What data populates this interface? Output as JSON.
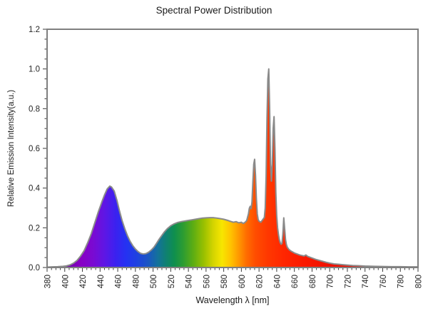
{
  "title": "Spectral Power Distribution",
  "colors": {
    "background": "#ffffff",
    "axis_box": "#7f7f7f",
    "tick": "#3a3a3a",
    "text": "#262626",
    "curve_line": "#8a8a8a"
  },
  "chart_data": {
    "type": "area",
    "title": "Spectral Power Distribution",
    "xlabel": "Wavelength λ [nm]",
    "ylabel": "Relative Emission Intensity(a.u.)",
    "xlim": [
      380,
      800
    ],
    "ylim": [
      0.0,
      1.2
    ],
    "x_major_step": 20,
    "x_minor_step": 5,
    "y_major_step": 0.2,
    "y_minor_step": 0.05,
    "grid": false,
    "legend_position": "none",
    "x_tick_labels": [
      "380",
      "400",
      "420",
      "440",
      "460",
      "480",
      "500",
      "520",
      "540",
      "560",
      "580",
      "600",
      "620",
      "640",
      "660",
      "680",
      "700",
      "720",
      "740",
      "760",
      "780",
      "800"
    ],
    "y_tick_labels": [
      "0.0",
      "0.2",
      "0.4",
      "0.6",
      "0.8",
      "1.0",
      "1.2"
    ],
    "fill_style": "visible-spectrum-gradient",
    "spectrum_stops": [
      [
        400,
        "#6a00a8"
      ],
      [
        418,
        "#8800c4"
      ],
      [
        432,
        "#7a0ad2"
      ],
      [
        446,
        "#5c17e6"
      ],
      [
        458,
        "#3a22f0"
      ],
      [
        470,
        "#2433f2"
      ],
      [
        482,
        "#1e42e0"
      ],
      [
        494,
        "#1b55c4"
      ],
      [
        505,
        "#14719c"
      ],
      [
        515,
        "#0f8170"
      ],
      [
        524,
        "#0f8f4e"
      ],
      [
        534,
        "#2c9c32"
      ],
      [
        546,
        "#5fae12"
      ],
      [
        558,
        "#9cc100"
      ],
      [
        568,
        "#d3d400"
      ],
      [
        578,
        "#f7e600"
      ],
      [
        588,
        "#ffc300"
      ],
      [
        597,
        "#ff9800"
      ],
      [
        606,
        "#ff6c00"
      ],
      [
        616,
        "#ff4d00"
      ],
      [
        630,
        "#ff3800"
      ],
      [
        648,
        "#ff2600"
      ],
      [
        672,
        "#fa1900"
      ],
      [
        700,
        "#f01000"
      ],
      [
        760,
        "#e60b00"
      ],
      [
        800,
        "#e40a00"
      ]
    ],
    "series": [
      {
        "name": "Spectral Power Distribution",
        "points": [
          [
            380,
            0.002
          ],
          [
            386,
            0.003
          ],
          [
            392,
            0.004
          ],
          [
            398,
            0.006
          ],
          [
            402,
            0.008
          ],
          [
            406,
            0.013
          ],
          [
            410,
            0.022
          ],
          [
            414,
            0.036
          ],
          [
            418,
            0.058
          ],
          [
            422,
            0.085
          ],
          [
            426,
            0.125
          ],
          [
            430,
            0.17
          ],
          [
            434,
            0.225
          ],
          [
            438,
            0.28
          ],
          [
            442,
            0.33
          ],
          [
            445,
            0.365
          ],
          [
            448,
            0.395
          ],
          [
            451,
            0.41
          ],
          [
            453,
            0.405
          ],
          [
            456,
            0.385
          ],
          [
            459,
            0.34
          ],
          [
            462,
            0.285
          ],
          [
            465,
            0.235
          ],
          [
            468,
            0.195
          ],
          [
            471,
            0.16
          ],
          [
            474,
            0.132
          ],
          [
            477,
            0.11
          ],
          [
            480,
            0.093
          ],
          [
            483,
            0.08
          ],
          [
            486,
            0.071
          ],
          [
            489,
            0.068
          ],
          [
            492,
            0.07
          ],
          [
            495,
            0.077
          ],
          [
            498,
            0.088
          ],
          [
            501,
            0.102
          ],
          [
            504,
            0.122
          ],
          [
            507,
            0.143
          ],
          [
            510,
            0.162
          ],
          [
            513,
            0.18
          ],
          [
            516,
            0.195
          ],
          [
            520,
            0.21
          ],
          [
            524,
            0.22
          ],
          [
            528,
            0.227
          ],
          [
            532,
            0.231
          ],
          [
            536,
            0.234
          ],
          [
            540,
            0.237
          ],
          [
            544,
            0.24
          ],
          [
            548,
            0.243
          ],
          [
            552,
            0.246
          ],
          [
            556,
            0.249
          ],
          [
            560,
            0.25
          ],
          [
            564,
            0.251
          ],
          [
            568,
            0.251
          ],
          [
            572,
            0.249
          ],
          [
            576,
            0.246
          ],
          [
            580,
            0.243
          ],
          [
            584,
            0.238
          ],
          [
            588,
            0.232
          ],
          [
            591,
            0.228
          ],
          [
            594,
            0.231
          ],
          [
            597,
            0.225
          ],
          [
            600,
            0.228
          ],
          [
            602,
            0.222
          ],
          [
            604,
            0.227
          ],
          [
            606,
            0.236
          ],
          [
            608,
            0.27
          ],
          [
            609,
            0.298
          ],
          [
            610,
            0.308
          ],
          [
            611,
            0.296
          ],
          [
            612,
            0.33
          ],
          [
            613,
            0.43
          ],
          [
            614,
            0.52
          ],
          [
            615,
            0.545
          ],
          [
            616,
            0.465
          ],
          [
            617,
            0.345
          ],
          [
            618,
            0.27
          ],
          [
            619,
            0.242
          ],
          [
            620,
            0.233
          ],
          [
            622,
            0.228
          ],
          [
            624,
            0.24
          ],
          [
            626,
            0.252
          ],
          [
            627,
            0.3
          ],
          [
            628,
            0.46
          ],
          [
            629,
            0.75
          ],
          [
            630,
            0.95
          ],
          [
            631,
            1.0
          ],
          [
            632,
            0.8
          ],
          [
            633,
            0.52
          ],
          [
            634,
            0.435
          ],
          [
            635,
            0.52
          ],
          [
            636,
            0.7
          ],
          [
            637,
            0.76
          ],
          [
            638,
            0.6
          ],
          [
            639,
            0.38
          ],
          [
            640,
            0.26
          ],
          [
            641,
            0.2
          ],
          [
            642,
            0.165
          ],
          [
            643,
            0.14
          ],
          [
            644,
            0.125
          ],
          [
            645,
            0.117
          ],
          [
            646,
            0.122
          ],
          [
            647,
            0.17
          ],
          [
            648,
            0.25
          ],
          [
            649,
            0.195
          ],
          [
            650,
            0.14
          ],
          [
            651,
            0.115
          ],
          [
            652,
            0.102
          ],
          [
            654,
            0.09
          ],
          [
            656,
            0.083
          ],
          [
            658,
            0.078
          ],
          [
            660,
            0.073
          ],
          [
            663,
            0.068
          ],
          [
            666,
            0.063
          ],
          [
            669,
            0.06
          ],
          [
            671,
            0.058
          ],
          [
            673,
            0.063
          ],
          [
            675,
            0.056
          ],
          [
            678,
            0.051
          ],
          [
            681,
            0.046
          ],
          [
            684,
            0.041
          ],
          [
            688,
            0.036
          ],
          [
            692,
            0.031
          ],
          [
            696,
            0.026
          ],
          [
            700,
            0.022
          ],
          [
            705,
            0.018
          ],
          [
            710,
            0.016
          ],
          [
            715,
            0.014
          ],
          [
            720,
            0.012
          ],
          [
            726,
            0.01
          ],
          [
            732,
            0.009
          ],
          [
            740,
            0.007
          ],
          [
            750,
            0.006
          ],
          [
            760,
            0.005
          ],
          [
            770,
            0.004
          ],
          [
            780,
            0.004
          ],
          [
            790,
            0.003
          ],
          [
            800,
            0.003
          ]
        ]
      }
    ]
  }
}
